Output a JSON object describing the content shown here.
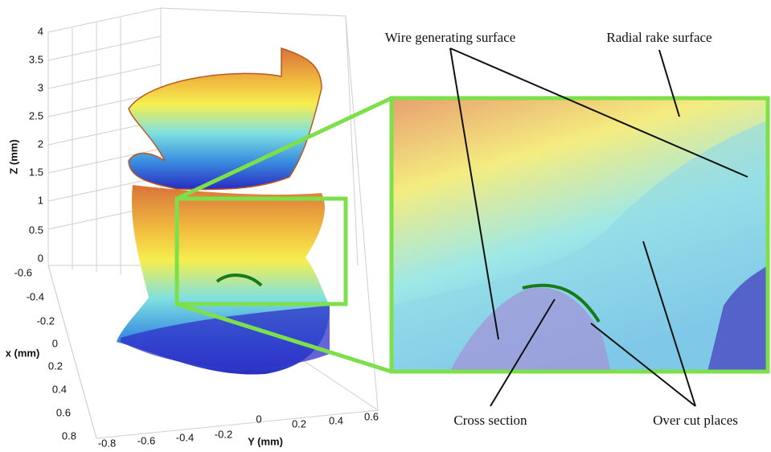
{
  "plot": {
    "z_axis": {
      "label": "Z (mm)",
      "ticks": [
        "4",
        "3.5",
        "3",
        "2.5",
        "2",
        "1.5",
        "1",
        "0.5",
        "0"
      ]
    },
    "x_axis": {
      "label": "x (mm)",
      "ticks": [
        "-0.6",
        "-0.4",
        "-0.2",
        "0",
        "0.2",
        "0.4",
        "0.6",
        "0.8"
      ]
    },
    "y_axis": {
      "label": "Y (mm)",
      "ticks": [
        "-0.8",
        "-0.6",
        "-0.4",
        "-0.2",
        "0",
        "0.2",
        "0.4",
        "0.6"
      ]
    }
  },
  "annotations": [
    "Wire generating surface",
    "Radial rake surface",
    "Cross section",
    "Over cut places"
  ]
}
